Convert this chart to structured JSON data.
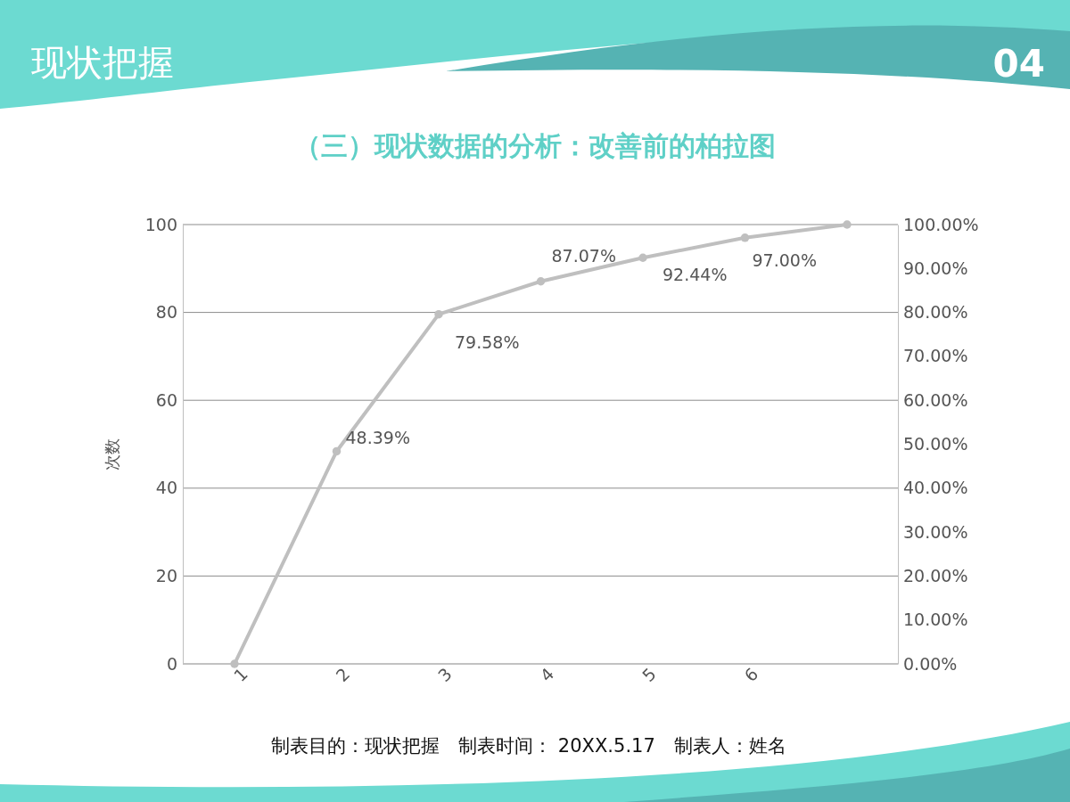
{
  "chart_data": {
    "type": "line",
    "title": "（三）现状数据的分析：改善前的柏拉图",
    "ylabel": "次数",
    "annotations": [
      "现状把握",
      "04",
      "制表目的：现状把握　制表时间： 20XX.5.17　制表人：姓名"
    ],
    "categories": [
      "1",
      "2",
      "3",
      "4",
      "5",
      "6",
      null
    ],
    "ylim": [
      0,
      100
    ],
    "yticks": [
      0,
      20,
      40,
      60,
      80,
      100
    ],
    "y2lim": [
      0,
      100
    ],
    "y2ticks": [
      {
        "value": 0,
        "label": "0.00%"
      },
      {
        "value": 10,
        "label": "10.00%"
      },
      {
        "value": 20,
        "label": "20.00%"
      },
      {
        "value": 30,
        "label": "30.00%"
      },
      {
        "value": 40,
        "label": "40.00%"
      },
      {
        "value": 50,
        "label": "50.00%"
      },
      {
        "value": 60,
        "label": "60.00%"
      },
      {
        "value": 70,
        "label": "70.00%"
      },
      {
        "value": 80,
        "label": "80.00%"
      },
      {
        "value": 90,
        "label": "90.00%"
      },
      {
        "value": 100,
        "label": "100.00%"
      }
    ],
    "grid": "y",
    "marker": "circle",
    "line_style": "solid",
    "series": [
      {
        "color": "#bfbfbf",
        "values": [
          0,
          48.39,
          79.58,
          87.07,
          92.44,
          97.0,
          100
        ],
        "value_labels": [
          null,
          "48.39%",
          "79.58%",
          "87.07%",
          "92.44%",
          "97.00%",
          null
        ]
      }
    ]
  }
}
